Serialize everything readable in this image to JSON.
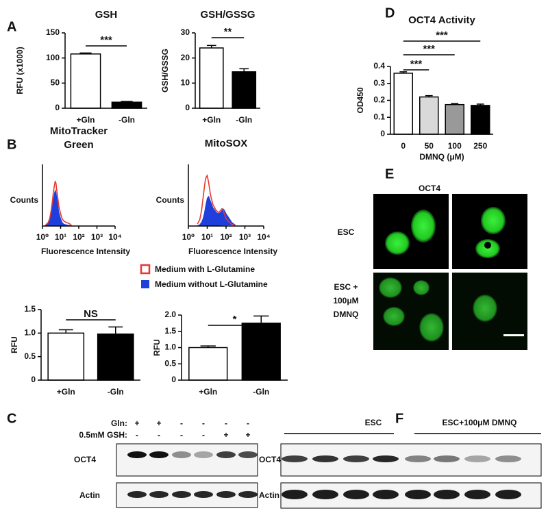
{
  "panel_letters": [
    "A",
    "B",
    "C",
    "D",
    "E",
    "F"
  ],
  "chart_data": [
    {
      "type": "bar",
      "title": "GSH",
      "ylabel": "RFU (x1000)",
      "categories": [
        "+Gln",
        "-Gln"
      ],
      "values": [
        108,
        12
      ],
      "errors": [
        2,
        1.5
      ],
      "colors": [
        "#ffffff",
        "#000000"
      ],
      "ylim": [
        0,
        150
      ],
      "yticks": [
        0,
        50,
        100,
        150
      ],
      "annotations": [
        "***"
      ]
    },
    {
      "type": "bar",
      "title": "GSH/GSSG",
      "ylabel": "GSH/GSSG",
      "categories": [
        "+Gln",
        "-Gln"
      ],
      "values": [
        24,
        14.5
      ],
      "errors": [
        1,
        1.2
      ],
      "colors": [
        "#ffffff",
        "#000000"
      ],
      "ylim": [
        0,
        30
      ],
      "yticks": [
        0,
        10,
        20,
        30
      ],
      "annotations": [
        "**"
      ]
    },
    {
      "type": "bar",
      "title": "OCT4 Activity",
      "ylabel": "OD450",
      "xlabel": "DMNQ (μM)",
      "categories": [
        "0",
        "50",
        "100",
        "250"
      ],
      "values": [
        0.36,
        0.22,
        0.175,
        0.17
      ],
      "errors": [
        0.008,
        0.008,
        0.006,
        0.008
      ],
      "colors": [
        "#ffffff",
        "#d9d9d9",
        "#999999",
        "#000000"
      ],
      "ylim": [
        0,
        0.4
      ],
      "yticks": [
        0,
        0.1,
        0.2,
        0.3,
        0.4
      ],
      "annotations": [
        "***",
        "***",
        "***"
      ]
    },
    {
      "type": "line",
      "title": [
        "MitoTracker",
        "Green"
      ],
      "ylabel": "Counts",
      "xlabel": "Fluorescence Intensity",
      "xscale": "log",
      "x": [
        1.5,
        2,
        2.5,
        3,
        3.5,
        4,
        4.5,
        5,
        5.5,
        6,
        7,
        8,
        10,
        12,
        15,
        20,
        30,
        40
      ],
      "series": [
        {
          "name": "Medium with L-Glutamine",
          "color": "#e8382f",
          "fill": false,
          "values": [
            2,
            5,
            12,
            25,
            40,
            55,
            65,
            72,
            70,
            60,
            45,
            32,
            20,
            12,
            8,
            6,
            4,
            1
          ]
        },
        {
          "name": "Medium without L-Glutamine",
          "color": "#1f3fdc",
          "fill": true,
          "values": [
            1,
            3,
            8,
            18,
            30,
            42,
            52,
            58,
            55,
            48,
            35,
            22,
            12,
            6,
            3,
            2,
            1,
            0
          ]
        }
      ],
      "xlim": [
        1,
        10000
      ],
      "xticks": [
        {
          "value": 1,
          "label": "10⁰"
        },
        {
          "value": 10,
          "label": "10¹"
        },
        {
          "value": 100,
          "label": "10²"
        },
        {
          "value": 1000,
          "label": "10³"
        },
        {
          "value": 10000,
          "label": "10⁴"
        }
      ],
      "ylim": [
        0,
        100
      ]
    },
    {
      "type": "line",
      "title": [
        "MitoSOX"
      ],
      "ylabel": "Counts",
      "xlabel": "Fluorescence Intensity",
      "xscale": "log",
      "x": [
        3,
        4,
        5,
        6,
        7,
        8,
        9,
        10,
        12,
        15,
        20,
        30,
        40,
        50,
        60,
        70,
        80,
        100,
        150,
        200,
        300
      ],
      "series": [
        {
          "name": "Medium with L-Glutamine",
          "color": "#e8382f",
          "fill": false,
          "values": [
            3,
            10,
            25,
            45,
            62,
            75,
            80,
            82,
            70,
            50,
            35,
            25,
            22,
            25,
            28,
            26,
            20,
            12,
            6,
            3,
            1
          ]
        },
        {
          "name": "Medium without L-Glutamine",
          "color": "#1f3fdc",
          "fill": true,
          "values": [
            0,
            2,
            6,
            12,
            20,
            30,
            38,
            45,
            48,
            40,
            30,
            22,
            20,
            22,
            25,
            28,
            26,
            20,
            12,
            6,
            2
          ]
        }
      ],
      "xlim": [
        1,
        10000
      ],
      "xticks": [
        {
          "value": 1,
          "label": "10⁰"
        },
        {
          "value": 10,
          "label": "10¹"
        },
        {
          "value": 100,
          "label": "10²"
        },
        {
          "value": 1000,
          "label": "10³"
        },
        {
          "value": 10000,
          "label": "10⁴"
        }
      ],
      "ylim": [
        0,
        100
      ]
    },
    {
      "type": "bar",
      "ylabel": "RFU",
      "categories": [
        "+Gln",
        "-Gln"
      ],
      "values": [
        1.0,
        0.98
      ],
      "errors": [
        0.07,
        0.15
      ],
      "colors": [
        "#ffffff",
        "#000000"
      ],
      "ylim": [
        0,
        1.5
      ],
      "yticks": [
        0,
        0.5,
        {
          "value": 1,
          "label": "1.0"
        },
        1.5
      ],
      "annotations": [
        "NS"
      ]
    },
    {
      "type": "bar",
      "ylabel": "RFU",
      "categories": [
        "+Gln",
        "-Gln"
      ],
      "values": [
        1.0,
        1.75
      ],
      "errors": [
        0.05,
        0.22
      ],
      "colors": [
        "#ffffff",
        "#000000"
      ],
      "ylim": [
        0,
        2
      ],
      "yticks": [
        0,
        0.5,
        {
          "value": 1,
          "label": "1.0"
        },
        1.5,
        {
          "value": 2,
          "label": "2.0"
        }
      ],
      "annotations": [
        "*"
      ]
    }
  ],
  "blot_c": {
    "gln_label": "Gln:",
    "gln": [
      "+",
      "+",
      "-",
      "-",
      "-",
      "-"
    ],
    "gsh_label": "0.5mM GSH:",
    "gsh": [
      "-",
      "-",
      "-",
      "-",
      "+",
      "+"
    ],
    "rows": [
      "OCT4",
      "Actin"
    ]
  },
  "image_e": {
    "title": "OCT4",
    "rows": [
      [
        "ESC"
      ],
      [
        "ESC +",
        "100μM",
        "DMNQ"
      ]
    ]
  },
  "blot_f": {
    "groups": [
      "ESC",
      "ESC+100μM DMNQ"
    ],
    "rows": [
      "OCT4",
      "Actin"
    ]
  }
}
